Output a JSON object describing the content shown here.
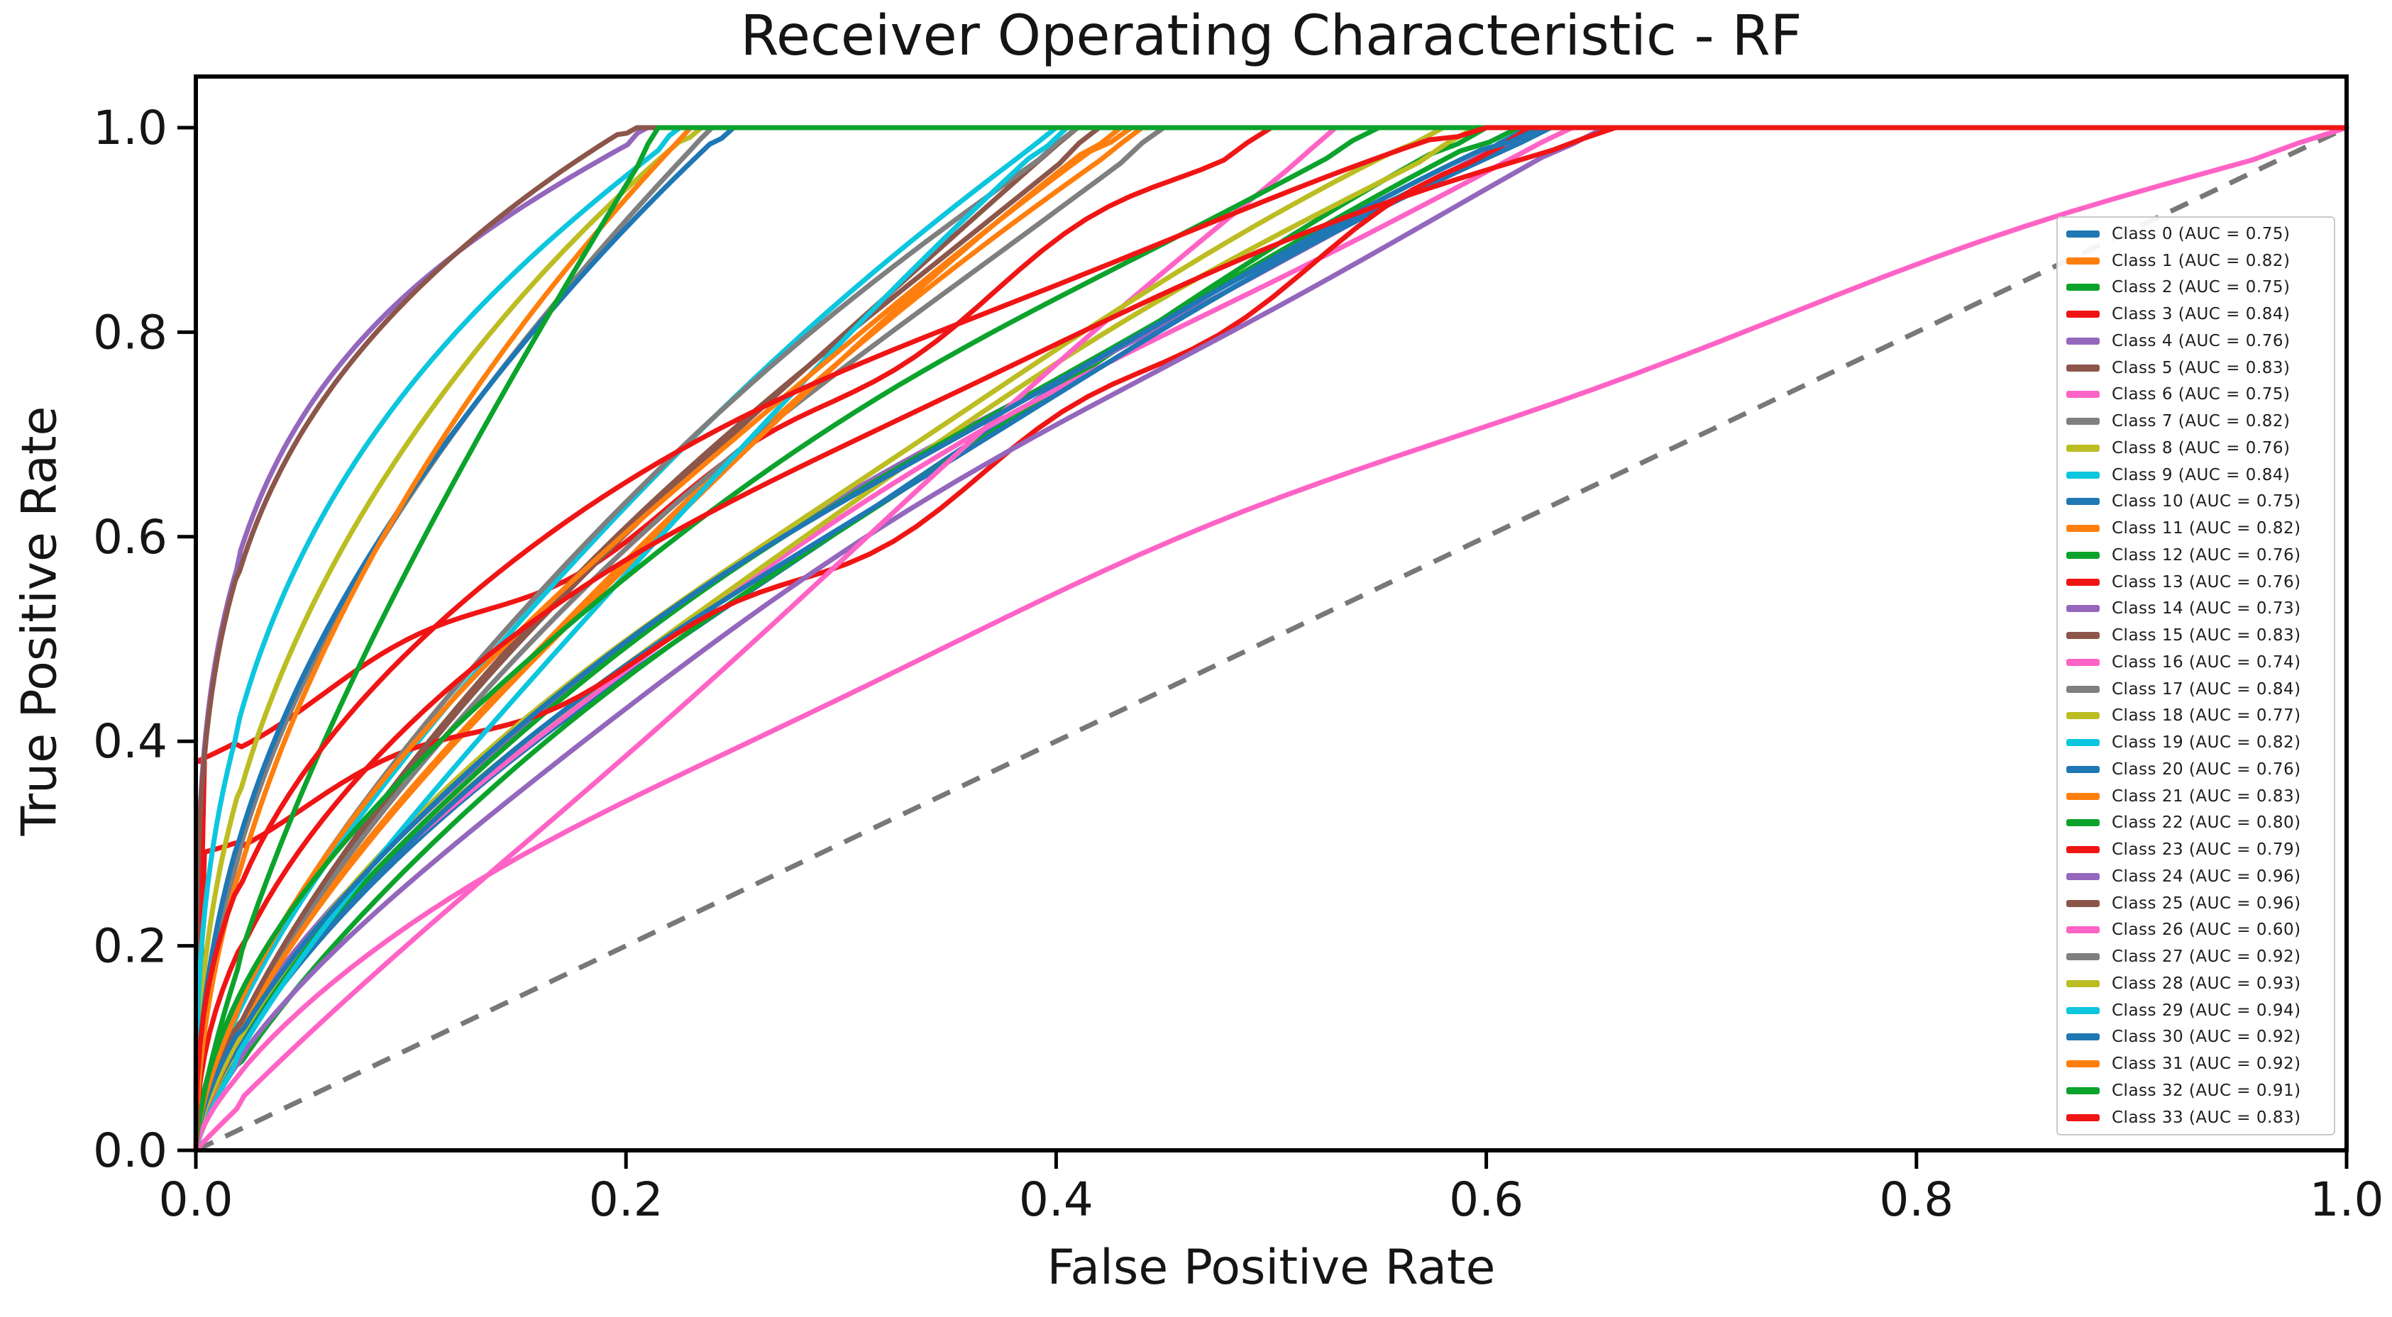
{
  "title": "Receiver Operating Characteristic - RF",
  "axes": {
    "x_label": "False Positive Rate",
    "y_label": "True Positive Rate",
    "x_ticks": [
      "0.0",
      "0.2",
      "0.4",
      "0.6",
      "0.8",
      "1.0"
    ],
    "y_ticks": [
      "0.0",
      "0.2",
      "0.4",
      "0.6",
      "0.8",
      "1.0"
    ]
  },
  "colors": {
    "axis": "#000000",
    "text": "#151515",
    "diagonal": "#787878",
    "legend_border": "#c9c9c9"
  },
  "chart_data": {
    "type": "line",
    "title": "Receiver Operating Characteristic - RF",
    "xlabel": "False Positive Rate",
    "ylabel": "True Positive Rate",
    "xlim": [
      0,
      1
    ],
    "ylim": [
      0,
      1.05
    ],
    "grid": false,
    "legend_position": "right",
    "reference_line": {
      "style": "dashed",
      "color": "#787878",
      "from": [
        0,
        0
      ],
      "to": [
        1,
        1
      ]
    },
    "series": [
      {
        "name": "Class 0",
        "legend_label": "Class 0 (AUC = 0.75)",
        "auc": 0.75,
        "color": "#1f77b4",
        "fpr_reach_1": 0.62
      },
      {
        "name": "Class 1",
        "legend_label": "Class 1 (AUC = 0.82)",
        "auc": 0.82,
        "color": "#ff7f0e",
        "fpr_reach_1": 0.44
      },
      {
        "name": "Class 2",
        "legend_label": "Class 2 (AUC = 0.75)",
        "auc": 0.75,
        "color": "#0ca32c",
        "fpr_reach_1": 0.6
      },
      {
        "name": "Class 3",
        "legend_label": "Class 3 (AUC = 0.84)",
        "auc": 0.84,
        "color": "#f01515",
        "fpr_reach_1": 0.5,
        "tpr_jump_at_0": 0.38,
        "wobble": 0.012
      },
      {
        "name": "Class 4",
        "legend_label": "Class 4 (AUC = 0.76)",
        "auc": 0.76,
        "color": "#9467bd",
        "fpr_reach_1": 0.63
      },
      {
        "name": "Class 5",
        "legend_label": "Class 5 (AUC = 0.83)",
        "auc": 0.83,
        "color": "#8c564b",
        "fpr_reach_1": 0.41
      },
      {
        "name": "Class 6",
        "legend_label": "Class 6 (AUC = 0.75)",
        "auc": 0.75,
        "color": "#ff63c5",
        "fpr_reach_1": 0.64
      },
      {
        "name": "Class 7",
        "legend_label": "Class 7 (AUC = 0.82)",
        "auc": 0.82,
        "color": "#7f7f7f",
        "fpr_reach_1": 0.45
      },
      {
        "name": "Class 8",
        "legend_label": "Class 8 (AUC = 0.76)",
        "auc": 0.76,
        "color": "#bcbd22",
        "fpr_reach_1": 0.595
      },
      {
        "name": "Class 9",
        "legend_label": "Class 9 (AUC = 0.84)",
        "auc": 0.84,
        "color": "#0cc6de",
        "fpr_reach_1": 0.4
      },
      {
        "name": "Class 10",
        "legend_label": "Class 10 (AUC = 0.75)",
        "auc": 0.75,
        "color": "#1f77b4",
        "fpr_reach_1": 0.63
      },
      {
        "name": "Class 11",
        "legend_label": "Class 11 (AUC = 0.82)",
        "auc": 0.82,
        "color": "#ff7f0e",
        "fpr_reach_1": 0.43
      },
      {
        "name": "Class 12",
        "legend_label": "Class 12 (AUC = 0.76)",
        "auc": 0.76,
        "color": "#0ca32c",
        "fpr_reach_1": 0.615
      },
      {
        "name": "Class 13",
        "legend_label": "Class 13 (AUC = 0.76)",
        "auc": 0.76,
        "color": "#f01515",
        "fpr_reach_1": 0.62,
        "tpr_jump_at_0": 0.29,
        "wobble": 0.012
      },
      {
        "name": "Class 14",
        "legend_label": "Class 14 (AUC = 0.73)",
        "auc": 0.73,
        "color": "#9467bd",
        "fpr_reach_1": 0.655
      },
      {
        "name": "Class 15",
        "legend_label": "Class 15 (AUC = 0.83)",
        "auc": 0.83,
        "color": "#8c564b",
        "fpr_reach_1": 0.42
      },
      {
        "name": "Class 16",
        "legend_label": "Class 16 (AUC = 0.74)",
        "auc": 0.74,
        "color": "#ff63c5",
        "fpr_reach_1": 0.53
      },
      {
        "name": "Class 17",
        "legend_label": "Class 17 (AUC = 0.84)",
        "auc": 0.84,
        "color": "#7f7f7f",
        "fpr_reach_1": 0.41
      },
      {
        "name": "Class 18",
        "legend_label": "Class 18 (AUC = 0.77)",
        "auc": 0.77,
        "color": "#bcbd22",
        "fpr_reach_1": 0.58
      },
      {
        "name": "Class 19",
        "legend_label": "Class 19 (AUC = 0.82)",
        "auc": 0.82,
        "color": "#0cc6de",
        "fpr_reach_1": 0.405
      },
      {
        "name": "Class 20",
        "legend_label": "Class 20 (AUC = 0.76)",
        "auc": 0.76,
        "color": "#1f77b4",
        "fpr_reach_1": 0.625
      },
      {
        "name": "Class 21",
        "legend_label": "Class 21 (AUC = 0.83)",
        "auc": 0.83,
        "color": "#ff7f0e",
        "fpr_reach_1": 0.435
      },
      {
        "name": "Class 22",
        "legend_label": "Class 22 (AUC = 0.80)",
        "auc": 0.8,
        "color": "#0ca32c",
        "fpr_reach_1": 0.55
      },
      {
        "name": "Class 23",
        "legend_label": "Class 23 (AUC = 0.79)",
        "auc": 0.79,
        "color": "#f01515",
        "fpr_reach_1": 0.66
      },
      {
        "name": "Class 24",
        "legend_label": "Class 24 (AUC = 0.96)",
        "auc": 0.96,
        "color": "#9467bd",
        "fpr_reach_1": 0.21
      },
      {
        "name": "Class 25",
        "legend_label": "Class 25 (AUC = 0.96)",
        "auc": 0.96,
        "color": "#8c564b",
        "fpr_reach_1": 0.205
      },
      {
        "name": "Class 26",
        "legend_label": "Class 26 (AUC = 0.60)",
        "auc": 0.6,
        "color": "#ff63c5",
        "fpr_reach_1": 1.0
      },
      {
        "name": "Class 27",
        "legend_label": "Class 27 (AUC = 0.92)",
        "auc": 0.92,
        "color": "#7f7f7f",
        "fpr_reach_1": 0.24
      },
      {
        "name": "Class 28",
        "legend_label": "Class 28 (AUC = 0.93)",
        "auc": 0.93,
        "color": "#bcbd22",
        "fpr_reach_1": 0.235
      },
      {
        "name": "Class 29",
        "legend_label": "Class 29 (AUC = 0.94)",
        "auc": 0.94,
        "color": "#0cc6de",
        "fpr_reach_1": 0.225
      },
      {
        "name": "Class 30",
        "legend_label": "Class 30 (AUC = 0.92)",
        "auc": 0.92,
        "color": "#1f77b4",
        "fpr_reach_1": 0.25
      },
      {
        "name": "Class 31",
        "legend_label": "Class 31 (AUC = 0.92)",
        "auc": 0.92,
        "color": "#ff7f0e",
        "fpr_reach_1": 0.23
      },
      {
        "name": "Class 32",
        "legend_label": "Class 32 (AUC = 0.91)",
        "auc": 0.91,
        "color": "#0ca32c",
        "fpr_reach_1": 0.215
      },
      {
        "name": "Class 33",
        "legend_label": "Class 33 (AUC = 0.83)",
        "auc": 0.83,
        "color": "#f01515",
        "fpr_reach_1": 0.6
      }
    ]
  }
}
